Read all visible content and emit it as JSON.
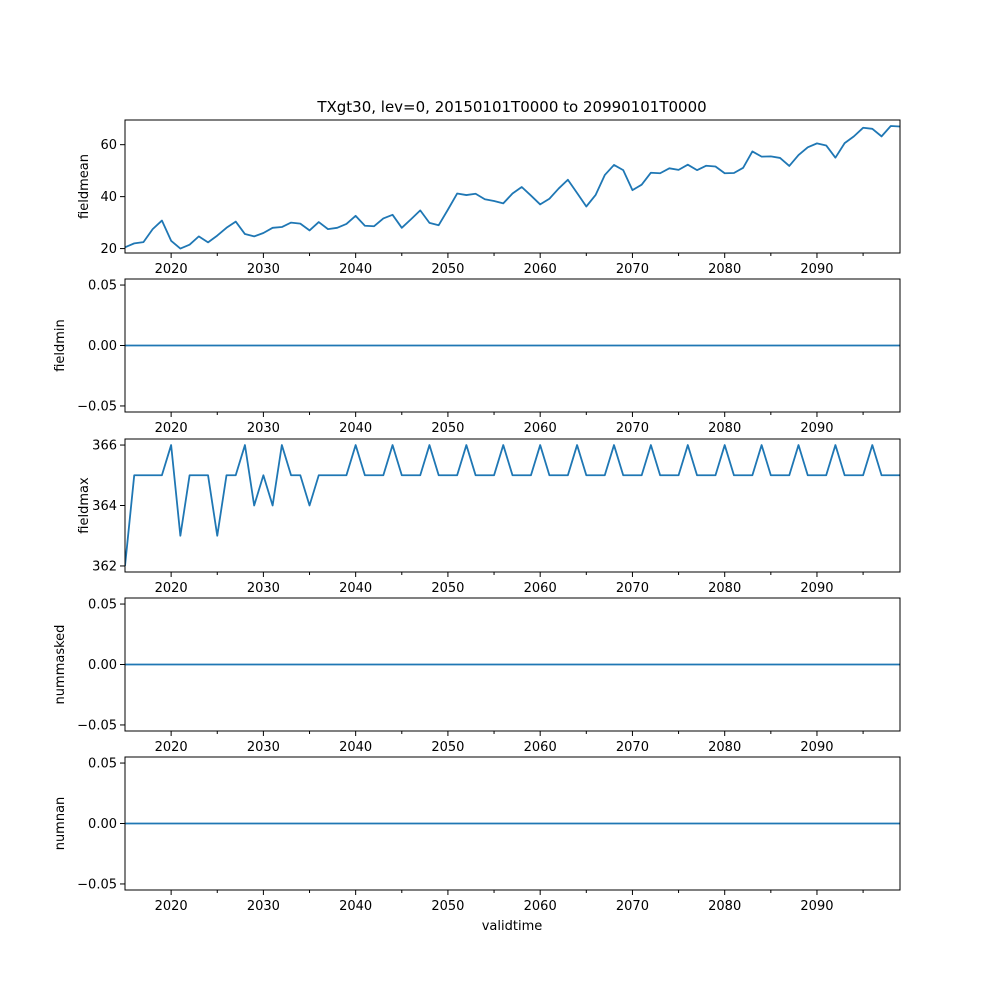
{
  "figure_title": "TXgt30, lev=0, 20150101T0000 to 20990101T0000",
  "xlabel": "validtime",
  "colors": {
    "line": "#1f77b4",
    "axes": "#000000",
    "background": "#ffffff"
  },
  "chart_data": [
    {
      "type": "line",
      "name": "fieldmean",
      "ylabel": "fieldmean",
      "title": "TXgt30, lev=0, 20150101T0000 to 20990101T0000",
      "xlim": [
        2015,
        2099
      ],
      "ylim": [
        18.3,
        69.5
      ],
      "yticks": [
        20,
        40,
        60
      ],
      "ytick_labels": [
        "20",
        "40",
        "60"
      ],
      "xticks": [
        2020,
        2030,
        2040,
        2050,
        2060,
        2070,
        2080,
        2090
      ],
      "xtick_labels": [
        "2020",
        "2030",
        "2040",
        "2050",
        "2060",
        "2070",
        "2080",
        "2090"
      ],
      "x_start": 2015,
      "values": [
        20.5,
        22.0,
        22.5,
        27.5,
        30.8,
        23.0,
        20.0,
        21.5,
        24.7,
        22.4,
        25.0,
        28.0,
        30.4,
        25.6,
        24.7,
        26.0,
        28.0,
        28.3,
        30.0,
        29.6,
        27.0,
        30.2,
        27.5,
        28.0,
        29.5,
        32.6,
        28.8,
        28.6,
        31.6,
        33.0,
        28.0,
        31.3,
        34.7,
        29.9,
        29.0,
        35.0,
        41.2,
        40.6,
        41.1,
        39.0,
        38.3,
        37.4,
        41.2,
        43.7,
        40.4,
        37.0,
        39.2,
        43.1,
        46.5,
        41.4,
        36.2,
        40.6,
        48.3,
        52.2,
        50.2,
        42.5,
        44.6,
        49.2,
        49.0,
        50.9,
        50.3,
        52.3,
        50.2,
        51.9,
        51.6,
        49.0,
        49.1,
        51.1,
        57.4,
        55.4,
        55.5,
        54.9,
        51.8,
        56.0,
        59.0,
        60.5,
        59.7,
        55.0,
        60.6,
        63.2,
        66.5,
        66.1,
        63.2,
        67.2,
        67.0
      ]
    },
    {
      "type": "line",
      "name": "fieldmin",
      "ylabel": "fieldmin",
      "xlim": [
        2015,
        2099
      ],
      "ylim": [
        -0.055,
        0.055
      ],
      "yticks": [
        -0.05,
        0.0,
        0.05
      ],
      "ytick_labels": [
        "−0.05",
        "0.00",
        "0.05"
      ],
      "xticks": [
        2020,
        2030,
        2040,
        2050,
        2060,
        2070,
        2080,
        2090
      ],
      "xtick_labels": [
        "2020",
        "2030",
        "2040",
        "2050",
        "2060",
        "2070",
        "2080",
        "2090"
      ],
      "x_start": 2015,
      "constant": 0,
      "count": 85
    },
    {
      "type": "line",
      "name": "fieldmax",
      "ylabel": "fieldmax",
      "xlim": [
        2015,
        2099
      ],
      "ylim": [
        361.8,
        366.2
      ],
      "yticks": [
        362,
        364,
        366
      ],
      "ytick_labels": [
        "362",
        "364",
        "366"
      ],
      "xticks": [
        2020,
        2030,
        2040,
        2050,
        2060,
        2070,
        2080,
        2090
      ],
      "xtick_labels": [
        "2020",
        "2030",
        "2040",
        "2050",
        "2060",
        "2070",
        "2080",
        "2090"
      ],
      "x_start": 2015,
      "values": [
        362,
        365,
        365,
        365,
        365,
        366,
        363,
        365,
        365,
        365,
        363,
        365,
        365,
        366,
        364,
        365,
        364,
        366,
        365,
        365,
        364,
        365,
        365,
        365,
        365,
        366,
        365,
        365,
        365,
        366,
        365,
        365,
        365,
        366,
        365,
        365,
        365,
        366,
        365,
        365,
        365,
        366,
        365,
        365,
        365,
        366,
        365,
        365,
        365,
        366,
        365,
        365,
        365,
        366,
        365,
        365,
        365,
        366,
        365,
        365,
        365,
        366,
        365,
        365,
        365,
        366,
        365,
        365,
        365,
        366,
        365,
        365,
        365,
        366,
        365,
        365,
        365,
        366,
        365,
        365,
        365,
        366,
        365,
        365,
        365
      ]
    },
    {
      "type": "line",
      "name": "nummasked",
      "ylabel": "nummasked",
      "xlim": [
        2015,
        2099
      ],
      "ylim": [
        -0.055,
        0.055
      ],
      "yticks": [
        -0.05,
        0.0,
        0.05
      ],
      "ytick_labels": [
        "−0.05",
        "0.00",
        "0.05"
      ],
      "xticks": [
        2020,
        2030,
        2040,
        2050,
        2060,
        2070,
        2080,
        2090
      ],
      "xtick_labels": [
        "2020",
        "2030",
        "2040",
        "2050",
        "2060",
        "2070",
        "2080",
        "2090"
      ],
      "x_start": 2015,
      "constant": 0,
      "count": 85
    },
    {
      "type": "line",
      "name": "numnan",
      "ylabel": "numnan",
      "xlabel": "validtime",
      "xlim": [
        2015,
        2099
      ],
      "ylim": [
        -0.055,
        0.055
      ],
      "yticks": [
        -0.05,
        0.0,
        0.05
      ],
      "ytick_labels": [
        "−0.05",
        "0.00",
        "0.05"
      ],
      "xticks": [
        2020,
        2030,
        2040,
        2050,
        2060,
        2070,
        2080,
        2090
      ],
      "xtick_labels": [
        "2020",
        "2030",
        "2040",
        "2050",
        "2060",
        "2070",
        "2080",
        "2090"
      ],
      "x_start": 2015,
      "constant": 0,
      "count": 85
    }
  ]
}
